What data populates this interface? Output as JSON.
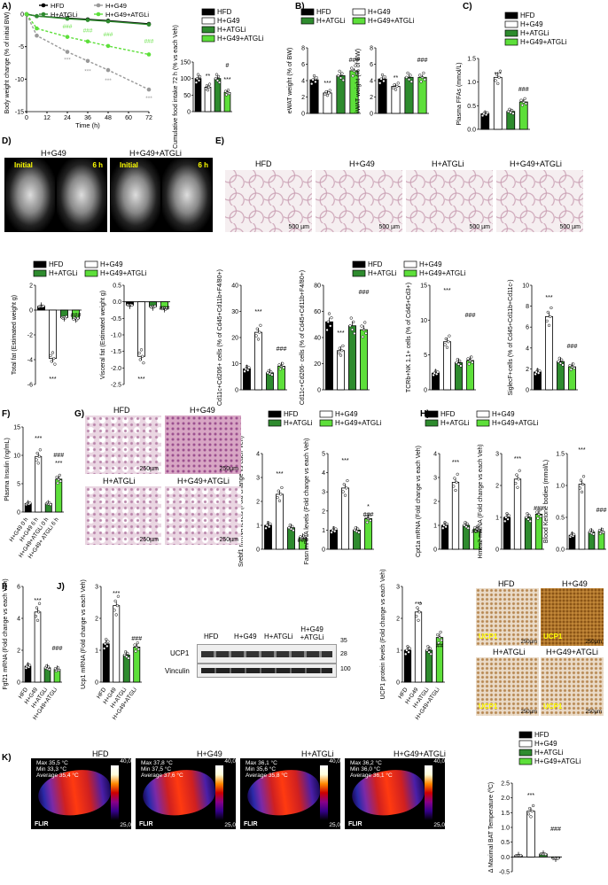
{
  "panels": {
    "A": "A)",
    "B": "B)",
    "C": "C)",
    "D": "D)",
    "E": "E)",
    "F": "F)",
    "G": "G)",
    "H": "H)",
    "I": "I)",
    "J": "J)",
    "K": "K)"
  },
  "groups": [
    "HFD",
    "H+G49",
    "H+ATGLi",
    "H+G49+ATGLi"
  ],
  "colors": {
    "HFD": "#000000",
    "H+G49": "#ffffff",
    "H+ATGLi": "#2e8b2e",
    "H+G49+ATGLi": "#5ddf3a",
    "H+G49 line": "#999999"
  },
  "sig": {
    "s3": "***",
    "s2": "**",
    "h3": "###",
    "h2": "##",
    "h1": "#",
    "s1": "*"
  },
  "chart_data": [
    {
      "id": "A_line",
      "type": "line",
      "xlabel": "Time (h)",
      "ylabel": "Body weight change (% of initial BW)",
      "x": [
        0,
        6,
        24,
        36,
        48,
        72
      ],
      "xticks": [
        "0",
        "12",
        "24",
        "36",
        "48",
        "60",
        "72"
      ],
      "yticks": [
        "0",
        "-5",
        "-10",
        "-15"
      ],
      "ylim": [
        -15,
        0
      ],
      "series": [
        {
          "name": "HFD",
          "values": [
            0,
            -0.3,
            -0.6,
            -0.8,
            -1.0,
            -1.5
          ]
        },
        {
          "name": "H+G49",
          "values": [
            0,
            -3.3,
            -5.8,
            -7.2,
            -8.6,
            -11.6
          ]
        },
        {
          "name": "H+ATGLi",
          "values": [
            0,
            -0.3,
            -0.7,
            -0.9,
            -1.1,
            -1.6
          ]
        },
        {
          "name": "H+G49+ATGLi",
          "values": [
            0,
            -2.2,
            -3.5,
            -4.2,
            -4.9,
            -6.2
          ]
        }
      ],
      "legend": [
        "HFD",
        "H+G49",
        "H+ATGLi",
        "H+G49+ATGLi"
      ]
    },
    {
      "id": "A_bar",
      "type": "bar",
      "ylabel": "Cumulative food intake 72 h (% vs each Veh)",
      "yticks": [
        "0",
        "50",
        "100",
        "150"
      ],
      "ylim": [
        0,
        150
      ],
      "values": [
        100,
        74,
        100,
        58
      ]
    },
    {
      "id": "B_e",
      "type": "bar",
      "ylabel": "eWAT weight (% of BW)",
      "yticks": [
        "0",
        "2",
        "4",
        "6",
        "8"
      ],
      "ylim": [
        0,
        8
      ],
      "values": [
        4.1,
        2.5,
        4.6,
        5.2
      ]
    },
    {
      "id": "B_i",
      "type": "bar",
      "ylabel": "iWAT weight (% of BW)",
      "yticks": [
        "0",
        "2",
        "4",
        "6",
        "8"
      ],
      "ylim": [
        0,
        8
      ],
      "values": [
        4.2,
        3.3,
        4.4,
        4.4
      ]
    },
    {
      "id": "C",
      "type": "bar",
      "ylabel": "Plasma FFAs (mmol/L)",
      "yticks": [
        "0.0",
        "0.5",
        "1.0",
        "1.5"
      ],
      "ylim": [
        0,
        1.5
      ],
      "values": [
        0.33,
        1.1,
        0.38,
        0.58
      ]
    },
    {
      "id": "D_total",
      "type": "bar",
      "ylabel": "Total fat (Estimated weight g)",
      "yticks": [
        "2",
        "0",
        "-2",
        "-4",
        "-6"
      ],
      "ylim": [
        -6,
        2
      ],
      "values": [
        0.3,
        -3.9,
        -0.6,
        -0.7
      ]
    },
    {
      "id": "D_visc",
      "type": "bar",
      "ylabel": "Visceral fat (Estimated weight g)",
      "yticks": [
        "0.5",
        "0.0",
        "-0.5",
        "-1.0",
        "-1.5",
        "-2.0",
        "-2.5"
      ],
      "ylim": [
        -2.5,
        0.5
      ],
      "values": [
        -0.1,
        -1.65,
        -0.15,
        -0.2
      ]
    },
    {
      "id": "E1",
      "type": "bar",
      "ylabel": "Cd11c+Cd206+ cells (% of Cd45+Cd11b+F4/80+)",
      "yticks": [
        "0",
        "10",
        "20",
        "30",
        "40"
      ],
      "ylim": [
        0,
        40
      ],
      "values": [
        8,
        22,
        6.5,
        9
      ]
    },
    {
      "id": "E2",
      "type": "bar",
      "ylabel": "Cd11c+Cd206- cells (% of Cd45+Cd11b+F4/80+)",
      "yticks": [
        "0",
        "20",
        "40",
        "60",
        "80"
      ],
      "ylim": [
        0,
        80
      ],
      "values": [
        52,
        30,
        49,
        46
      ]
    },
    {
      "id": "E3",
      "type": "bar",
      "ylabel": "TCRb+NK 1.1+ cells (% of Cd45+Cd3+)",
      "yticks": [
        "0",
        "5",
        "10",
        "15"
      ],
      "ylim": [
        0,
        15
      ],
      "values": [
        2.4,
        6.9,
        3.9,
        4.2
      ]
    },
    {
      "id": "E4",
      "type": "bar",
      "ylabel": "SiglecF+cells (% of Cd45+Cd11b+Cd11c-)",
      "yticks": [
        "0",
        "2",
        "4",
        "6",
        "8",
        "10"
      ],
      "ylim": [
        0,
        10
      ],
      "values": [
        1.7,
        7.0,
        2.7,
        2.2
      ]
    },
    {
      "id": "F",
      "type": "bar",
      "ylabel": "Plasma Insulin (ng/mL)",
      "yticks": [
        "0",
        "5",
        "10",
        "15"
      ],
      "ylim": [
        0,
        15
      ],
      "categories": [
        "H+G49 0 h",
        "H+G49 6 h",
        "H+G49+ATGLi 0 h",
        "H+G49+ ATGLi 6 h"
      ],
      "values": [
        1.5,
        9.8,
        1.5,
        5.8
      ]
    },
    {
      "id": "G1",
      "type": "bar",
      "ylabel": "Srebf1 mRNA levels (Fold change vs each Veh)",
      "yticks": [
        "0",
        "1",
        "2",
        "3",
        "4"
      ],
      "ylim": [
        0,
        4
      ],
      "values": [
        1.0,
        2.3,
        0.9,
        0.5
      ]
    },
    {
      "id": "G2",
      "type": "bar",
      "ylabel": "Fasn mRNA levels (Fold change vs each Veh)",
      "yticks": [
        "0",
        "1",
        "2",
        "3",
        "4",
        "5"
      ],
      "ylim": [
        0,
        5
      ],
      "values": [
        1.0,
        3.2,
        1.0,
        1.6
      ]
    },
    {
      "id": "H1",
      "type": "bar",
      "ylabel": "Cpt1a mRNA (Fold change vs each Veh)",
      "yticks": [
        "0",
        "1",
        "2",
        "3",
        "4"
      ],
      "ylim": [
        0,
        4
      ],
      "values": [
        1.0,
        2.8,
        1.0,
        0.85
      ]
    },
    {
      "id": "H2",
      "type": "bar",
      "ylabel": "Hmcs2 mRNA (Fold change vs each Veh)",
      "yticks": [
        "0",
        "1",
        "2",
        "3"
      ],
      "ylim": [
        0,
        3
      ],
      "values": [
        1.0,
        2.2,
        1.0,
        1.1
      ]
    },
    {
      "id": "H3",
      "type": "bar",
      "ylabel": "Blood Ketone bodies (mmol/L)",
      "yticks": [
        "0.0",
        "0.5",
        "1.0",
        "1.5"
      ],
      "ylim": [
        0,
        1.5
      ],
      "values": [
        0.22,
        1.02,
        0.27,
        0.28
      ]
    },
    {
      "id": "I",
      "type": "bar",
      "ylabel": "Fgf21 mRNA (Fold change vs each Veh)",
      "yticks": [
        "0",
        "2",
        "4",
        "6"
      ],
      "ylim": [
        0,
        6
      ],
      "categories": [
        "HFD",
        "H+G49",
        "H+ATGLi",
        "H+G49+ATGLi"
      ],
      "values": [
        1.0,
        4.4,
        0.9,
        0.8
      ]
    },
    {
      "id": "J1",
      "type": "bar",
      "ylabel": "Ucp1 mRNA (Fold change vs each Veh)",
      "yticks": [
        "0",
        "1",
        "2",
        "3"
      ],
      "ylim": [
        0,
        3
      ],
      "categories": [
        "HFD",
        "H+G49",
        "H+ATGLi",
        "H+G49+ATGLi"
      ],
      "values": [
        1.2,
        2.4,
        0.85,
        1.1
      ]
    },
    {
      "id": "J2",
      "type": "bar",
      "ylabel": "UCP1 protein levels (Fold change vs each Veh)",
      "yticks": [
        "0",
        "1",
        "2",
        "3"
      ],
      "ylim": [
        0,
        3
      ],
      "categories": [
        "HFD",
        "H+G49",
        "H+ATGLi",
        "H+G49+ATGLi"
      ],
      "values": [
        1.0,
        2.2,
        1.0,
        1.4
      ]
    },
    {
      "id": "K",
      "type": "bar",
      "ylabel": "Δ Maximal BAT Temperature (ºC)",
      "yticks": [
        "2.5",
        "2.0",
        "1.5",
        "1.0",
        "0.5",
        "0.0",
        "-0.5"
      ],
      "ylim": [
        -0.5,
        2.5
      ],
      "values": [
        0.05,
        1.55,
        0.1,
        -0.05
      ]
    }
  ],
  "D": {
    "groups": [
      "H+G49",
      "H+G49+ATGLi"
    ],
    "initial": "Initial",
    "h6": "6 h"
  },
  "E": {
    "titles": [
      "HFD",
      "H+G49",
      "H+ATGLi",
      "H+G49+ATGLi"
    ],
    "scale": "500 µm"
  },
  "G": {
    "titles": [
      "HFD",
      "H+G49",
      "H+ATGLi",
      "H+G49+ATGLi"
    ],
    "scale": "250µm"
  },
  "Jwb": {
    "groups": [
      "HFD",
      "H+G49",
      "H+ATGLi",
      "H+G49 +ATGLi"
    ],
    "rows": [
      "UCP1",
      "Vinculin"
    ],
    "mw": [
      "35",
      "28",
      "100"
    ]
  },
  "Jihc": {
    "titles": [
      "HFD",
      "H+G49",
      "H+ATGLi",
      "H+G49+ATGLi"
    ],
    "tag": "UCP1",
    "scale": "250µm"
  },
  "K": {
    "titles": [
      "HFD",
      "H+G49",
      "H+ATGLi",
      "H+G49+ATGLi"
    ],
    "max": "40,0",
    "min": "25,0",
    "brand": "FLIR",
    "readouts": [
      "Max 35,5 °C\nMin 33,3 °C\nAverage 35,4 °C",
      "Max 37,8 °C\nMin 37,5 °C\nAverage 37,6 °C",
      "Max 36,1 °C\nMin 35,6 °C\nAverage 35,8 °C",
      "Max 36,2 °C\nMin 36,0 °C\nAverage 36,1 °C"
    ]
  }
}
